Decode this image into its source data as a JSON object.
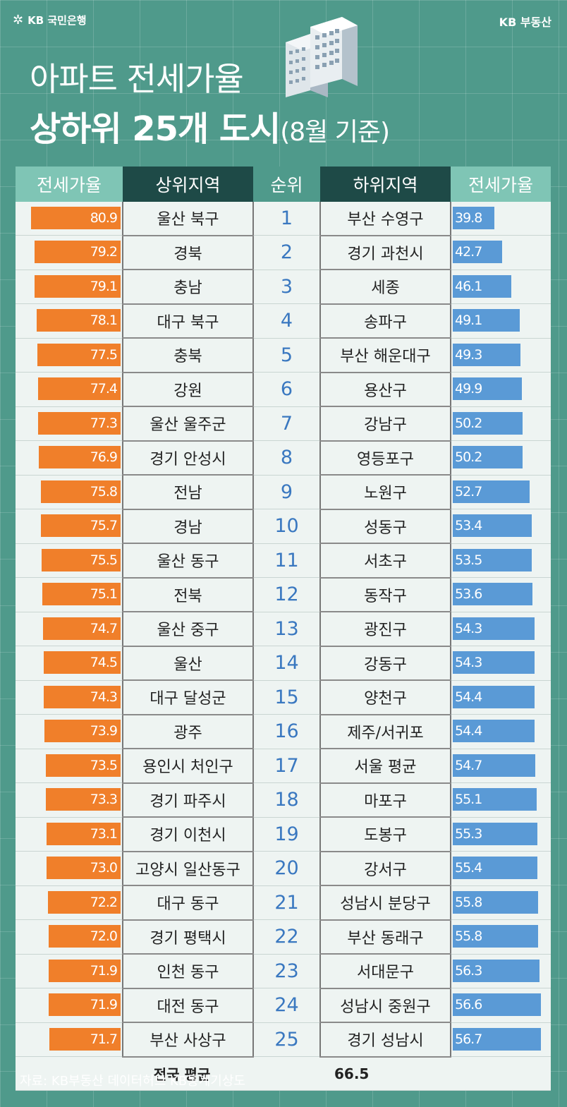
{
  "brand_left": "KB 국민은행",
  "brand_right": "KB 부동산",
  "title_line1": "아파트 전세가율",
  "title_line2_main": "상하위 25개 도시",
  "title_line2_sub": "(8월 기준)",
  "headers": {
    "rate_left": "전세가율",
    "top_region": "상위지역",
    "rank": "순위",
    "bottom_region": "하위지역",
    "rate_right": "전세가율"
  },
  "average": {
    "label": "전국 평균",
    "value": "66.5"
  },
  "source": "자료: KB부동산 데이터허브 KB통계기상도",
  "colors": {
    "top_bar": "#f07f2a",
    "bottom_bar": "#5a9ad6",
    "header_dark": "#1e4a47",
    "header_light": "#7fc5b5",
    "rank_text": "#3a78c0"
  },
  "chart_data": {
    "type": "bar",
    "title": "아파트 전세가율 상하위 25개 도시(8월 기준)",
    "rank": [
      1,
      2,
      3,
      4,
      5,
      6,
      7,
      8,
      9,
      10,
      11,
      12,
      13,
      14,
      15,
      16,
      17,
      18,
      19,
      20,
      21,
      22,
      23,
      24,
      25
    ],
    "series": [
      {
        "name": "상위지역",
        "categories": [
          "울산 북구",
          "경북",
          "충남",
          "대구 북구",
          "충북",
          "강원",
          "울산 울주군",
          "경기 안성시",
          "전남",
          "경남",
          "울산 동구",
          "전북",
          "울산 중구",
          "울산",
          "대구 달성군",
          "광주",
          "용인시 처인구",
          "경기 파주시",
          "경기 이천시",
          "고양시 일산동구",
          "대구 동구",
          "경기 평택시",
          "인천 동구",
          "대전 동구",
          "부산 사상구"
        ],
        "values": [
          "80.9",
          "79.2",
          "79.1",
          "78.1",
          "77.5",
          "77.4",
          "77.3",
          "76.9",
          "75.8",
          "75.7",
          "75.5",
          "75.1",
          "74.7",
          "74.5",
          "74.3",
          "73.9",
          "73.5",
          "73.3",
          "73.1",
          "73.0",
          "72.2",
          "72.0",
          "71.9",
          "71.9",
          "71.7"
        ]
      },
      {
        "name": "하위지역",
        "categories": [
          "부산 수영구",
          "경기 과천시",
          "세종",
          "송파구",
          "부산 해운대구",
          "용산구",
          "강남구",
          "영등포구",
          "노원구",
          "성동구",
          "서초구",
          "동작구",
          "광진구",
          "강동구",
          "양천구",
          "제주/서귀포",
          "서울 평균",
          "마포구",
          "도봉구",
          "강서구",
          "성남시 분당구",
          "부산 동래구",
          "서대문구",
          "성남시 중원구",
          "경기 성남시"
        ],
        "values": [
          "39.8",
          "42.7",
          "46.1",
          "49.1",
          "49.3",
          "49.9",
          "50.2",
          "50.2",
          "52.7",
          "53.4",
          "53.5",
          "53.6",
          "54.3",
          "54.3",
          "54.4",
          "54.4",
          "54.7",
          "55.1",
          "55.3",
          "55.4",
          "55.8",
          "55.8",
          "56.3",
          "56.6",
          "56.7"
        ]
      }
    ]
  }
}
